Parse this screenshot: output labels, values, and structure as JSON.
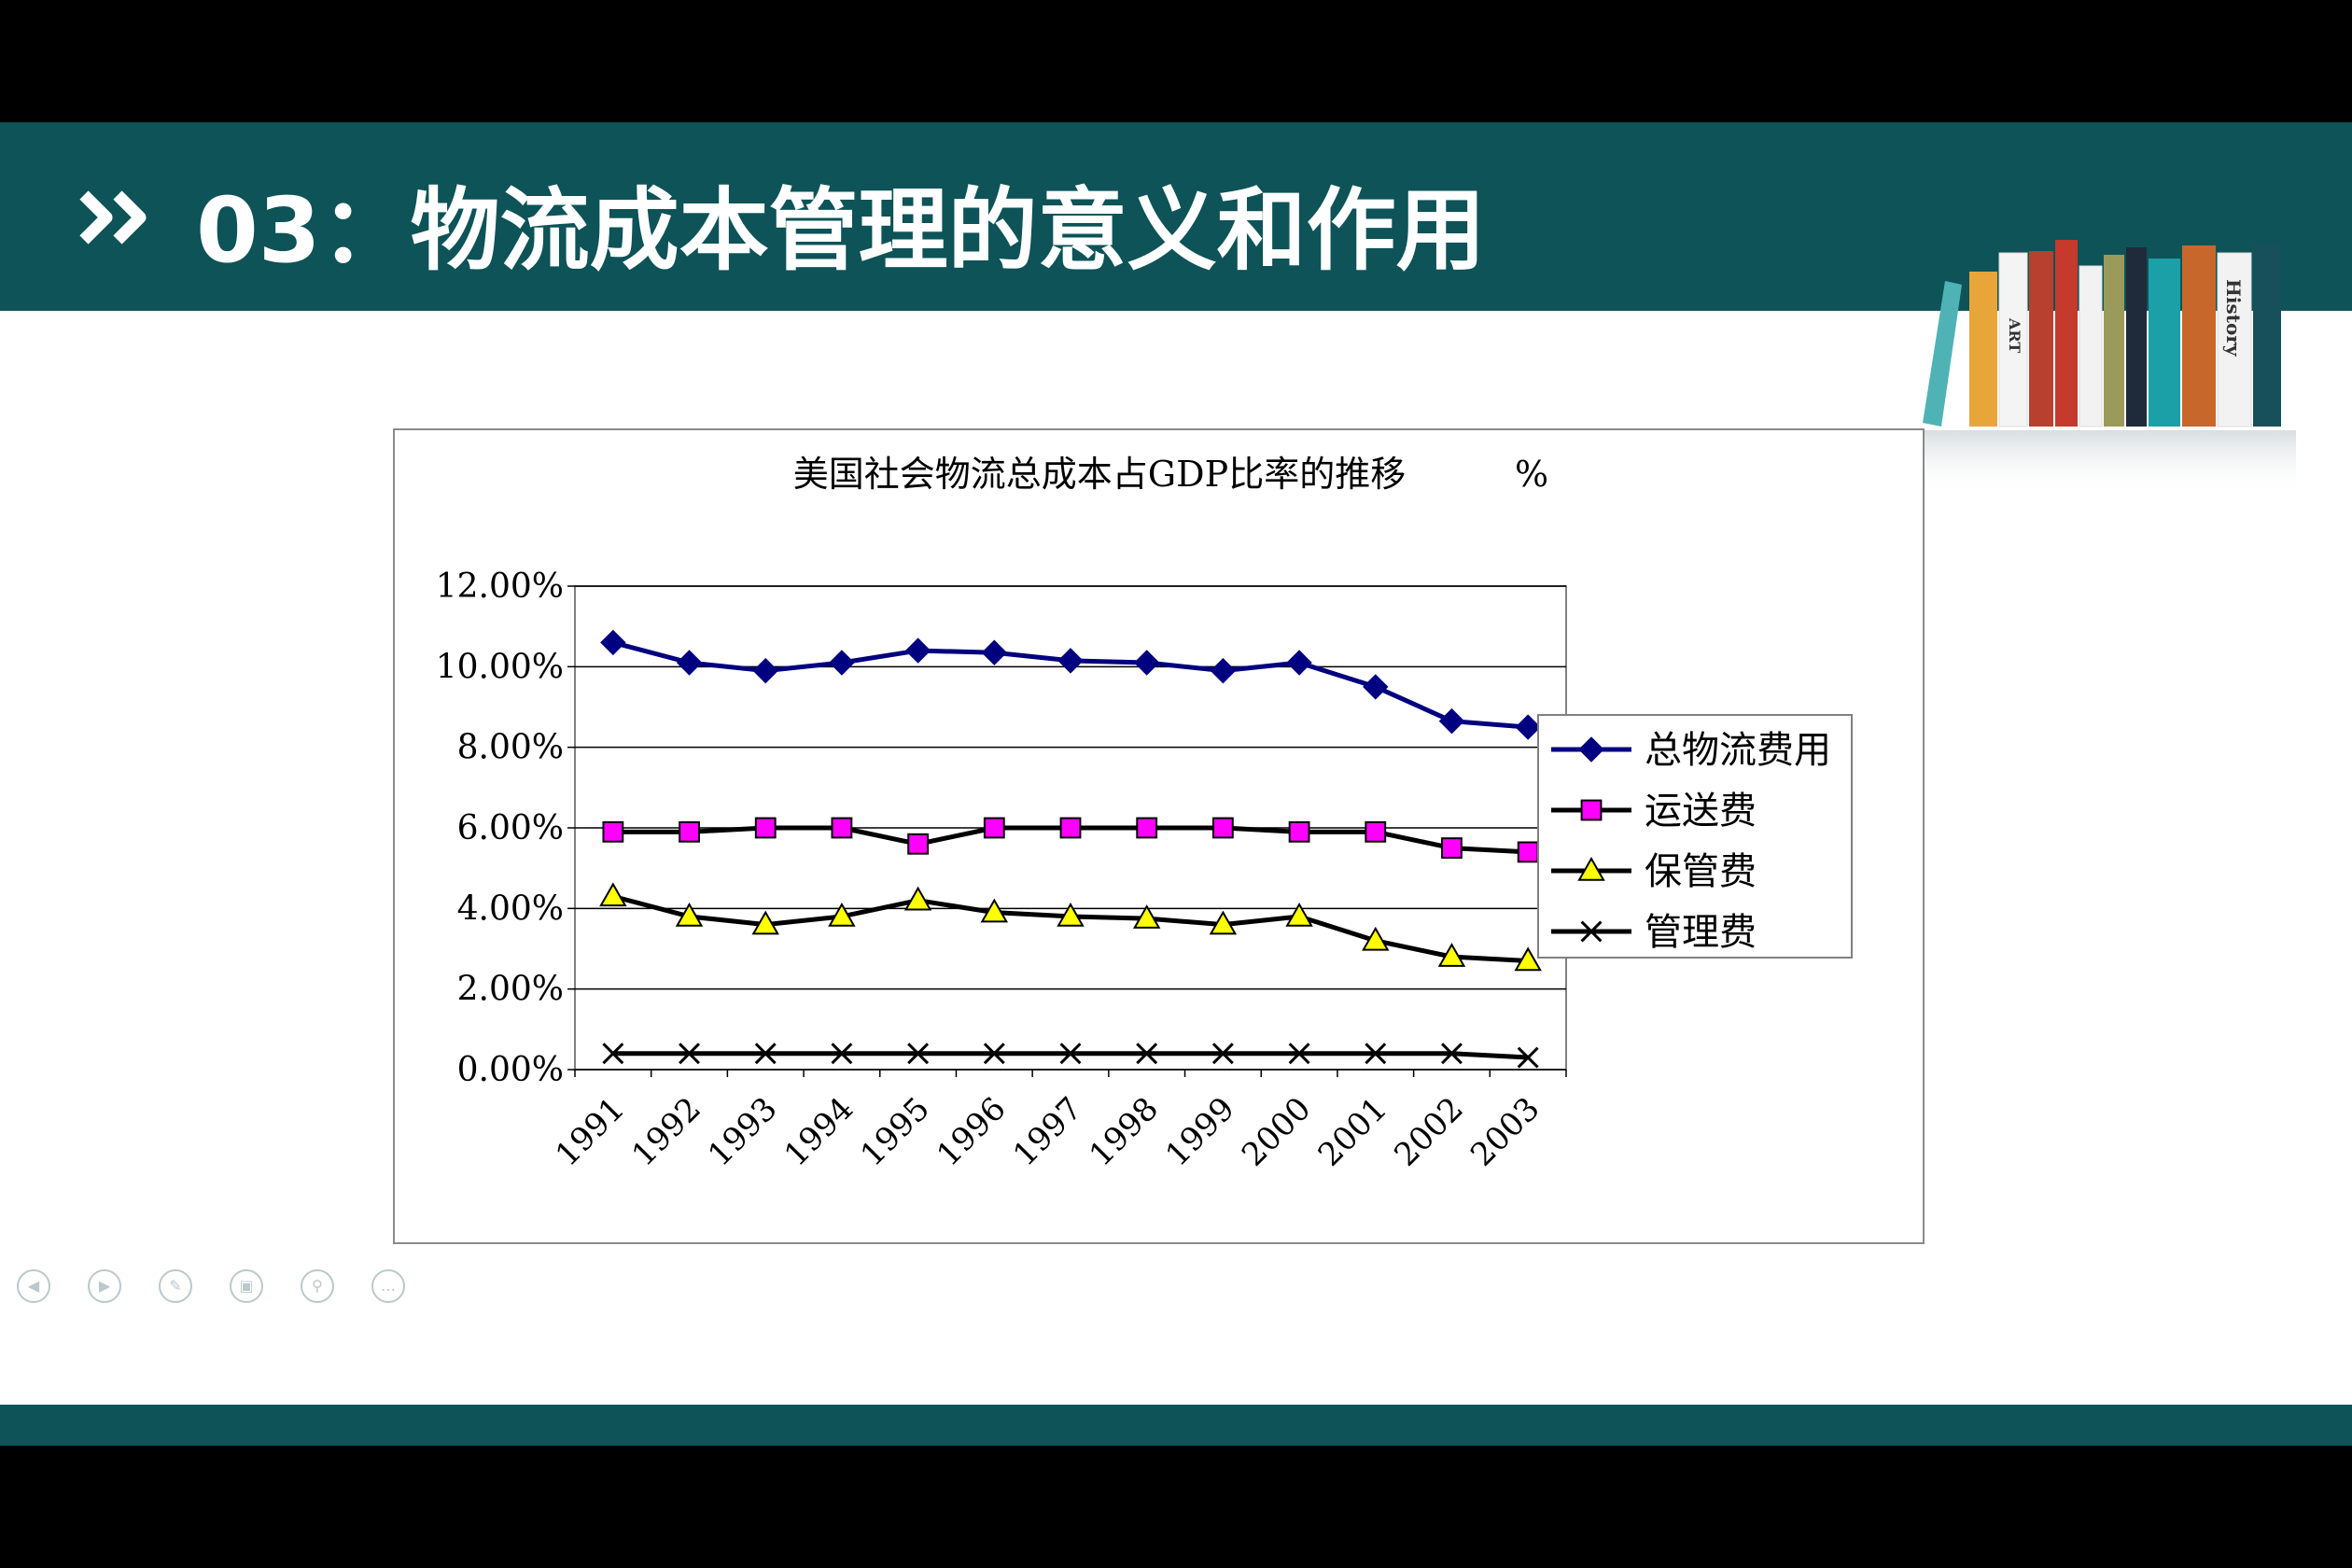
{
  "slide": {
    "title": "03：物流成本管理的意义和作用",
    "colors": {
      "theme": "#0d5358",
      "background": "#ffffff"
    }
  },
  "books": {
    "spine_labels": [
      "ART",
      "History"
    ]
  },
  "chart_data": {
    "type": "line",
    "title": "美国社会物流总成本占GDP比率的推移",
    "unit_label": "%",
    "xlabel": "",
    "ylabel": "",
    "categories": [
      "1991",
      "1992",
      "1993",
      "1994",
      "1995",
      "1996",
      "1997",
      "1998",
      "1999",
      "2000",
      "2001",
      "2002",
      "2003"
    ],
    "ylim": [
      0,
      12
    ],
    "yticks": [
      0,
      2,
      4,
      6,
      8,
      10,
      12
    ],
    "ytick_labels": [
      "0.00%",
      "2.00%",
      "4.00%",
      "6.00%",
      "8.00%",
      "10.00%",
      "12.00%"
    ],
    "grid": true,
    "legend_position": "right",
    "series": [
      {
        "name": "总物流费用",
        "marker": "diamond",
        "color": "#000080",
        "marker_fill": "#000080",
        "values": [
          10.6,
          10.1,
          9.9,
          10.1,
          10.4,
          10.35,
          10.15,
          10.1,
          9.9,
          10.1,
          9.5,
          8.65,
          8.5
        ]
      },
      {
        "name": "运送费",
        "marker": "square",
        "color": "#000000",
        "marker_fill": "#ff00ff",
        "values": [
          5.9,
          5.9,
          6.0,
          6.0,
          5.6,
          6.0,
          6.0,
          6.0,
          6.0,
          5.9,
          5.9,
          5.5,
          5.4
        ]
      },
      {
        "name": "保管费",
        "marker": "triangle",
        "color": "#000000",
        "marker_fill": "#ffff00",
        "values": [
          4.3,
          3.8,
          3.6,
          3.8,
          4.2,
          3.9,
          3.8,
          3.75,
          3.6,
          3.8,
          3.2,
          2.8,
          2.7
        ]
      },
      {
        "name": "管理费",
        "marker": "x",
        "color": "#000000",
        "marker_fill": "none",
        "values": [
          0.4,
          0.4,
          0.4,
          0.4,
          0.4,
          0.4,
          0.4,
          0.4,
          0.4,
          0.4,
          0.4,
          0.4,
          0.3
        ]
      }
    ]
  },
  "nav_controls": [
    {
      "name": "previous",
      "icon": "prev-arrow-icon",
      "glyph": "◀"
    },
    {
      "name": "next",
      "icon": "next-arrow-icon",
      "glyph": "▶"
    },
    {
      "name": "pen",
      "icon": "pen-icon",
      "glyph": "✎"
    },
    {
      "name": "slides",
      "icon": "slides-icon",
      "glyph": "▣"
    },
    {
      "name": "zoom",
      "icon": "zoom-icon",
      "glyph": "⚲"
    },
    {
      "name": "more",
      "icon": "more-icon",
      "glyph": "…"
    }
  ]
}
